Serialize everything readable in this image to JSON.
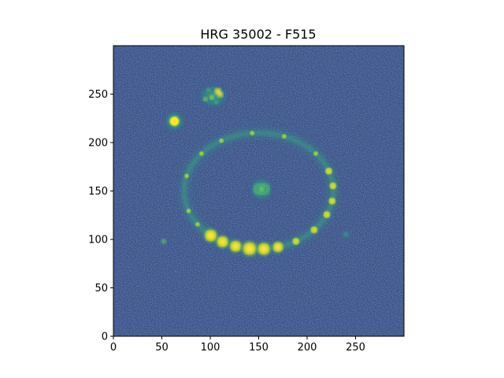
{
  "chart_data": {
    "type": "heatmap",
    "title": "HRG 35002 - F515",
    "xlabel": "",
    "ylabel": "",
    "xlim": [
      0,
      300
    ],
    "ylim": [
      0,
      300
    ],
    "x_ticks": [
      0,
      50,
      100,
      150,
      200,
      250
    ],
    "y_ticks": [
      0,
      50,
      100,
      150,
      200,
      250
    ],
    "colormap": "viridis",
    "background_color": "#3b528b",
    "features": [
      {
        "name": "ring",
        "center": [
          150,
          150
        ],
        "radius_x": 77,
        "radius_y": 60
      },
      {
        "name": "central-nucleus",
        "center": [
          153,
          152
        ]
      },
      {
        "name": "bright-knot",
        "center": [
          63,
          222
        ]
      },
      {
        "name": "companion-clump",
        "center": [
          103,
          248
        ]
      },
      {
        "name": "faint-knot",
        "center": [
          52,
          98
        ]
      },
      {
        "name": "faint-blob",
        "center": [
          240,
          105
        ]
      }
    ]
  }
}
